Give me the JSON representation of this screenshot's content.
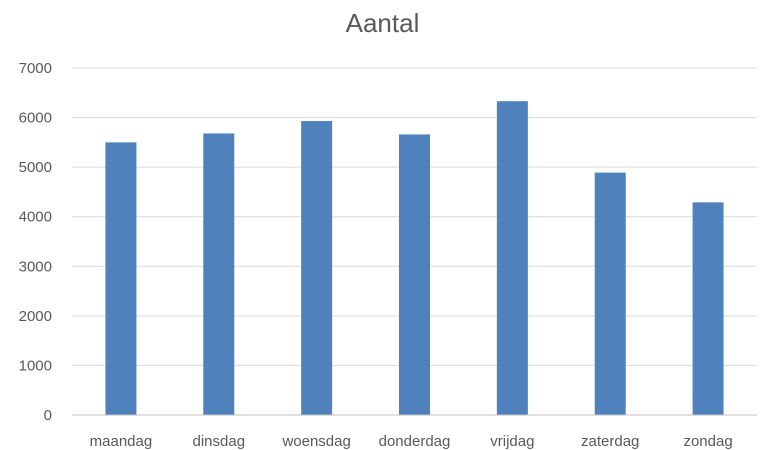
{
  "chart_data": {
    "type": "bar",
    "title": "Aantal",
    "categories": [
      "maandag",
      "dinsdag",
      "woensdag",
      "donderdag",
      "vrijdag",
      "zaterdag",
      "zondag"
    ],
    "series": [
      {
        "values": [
          5500,
          5680,
          5930,
          5660,
          6330,
          4890,
          4290
        ]
      }
    ],
    "ylim": [
      0,
      7000
    ],
    "yticks": [
      0,
      1000,
      2000,
      3000,
      4000,
      5000,
      6000,
      7000
    ],
    "grid": true,
    "legend": "none",
    "colors": {
      "bar": "#4f81bd",
      "grid": "#d9d9d9",
      "text": "#595959"
    }
  }
}
